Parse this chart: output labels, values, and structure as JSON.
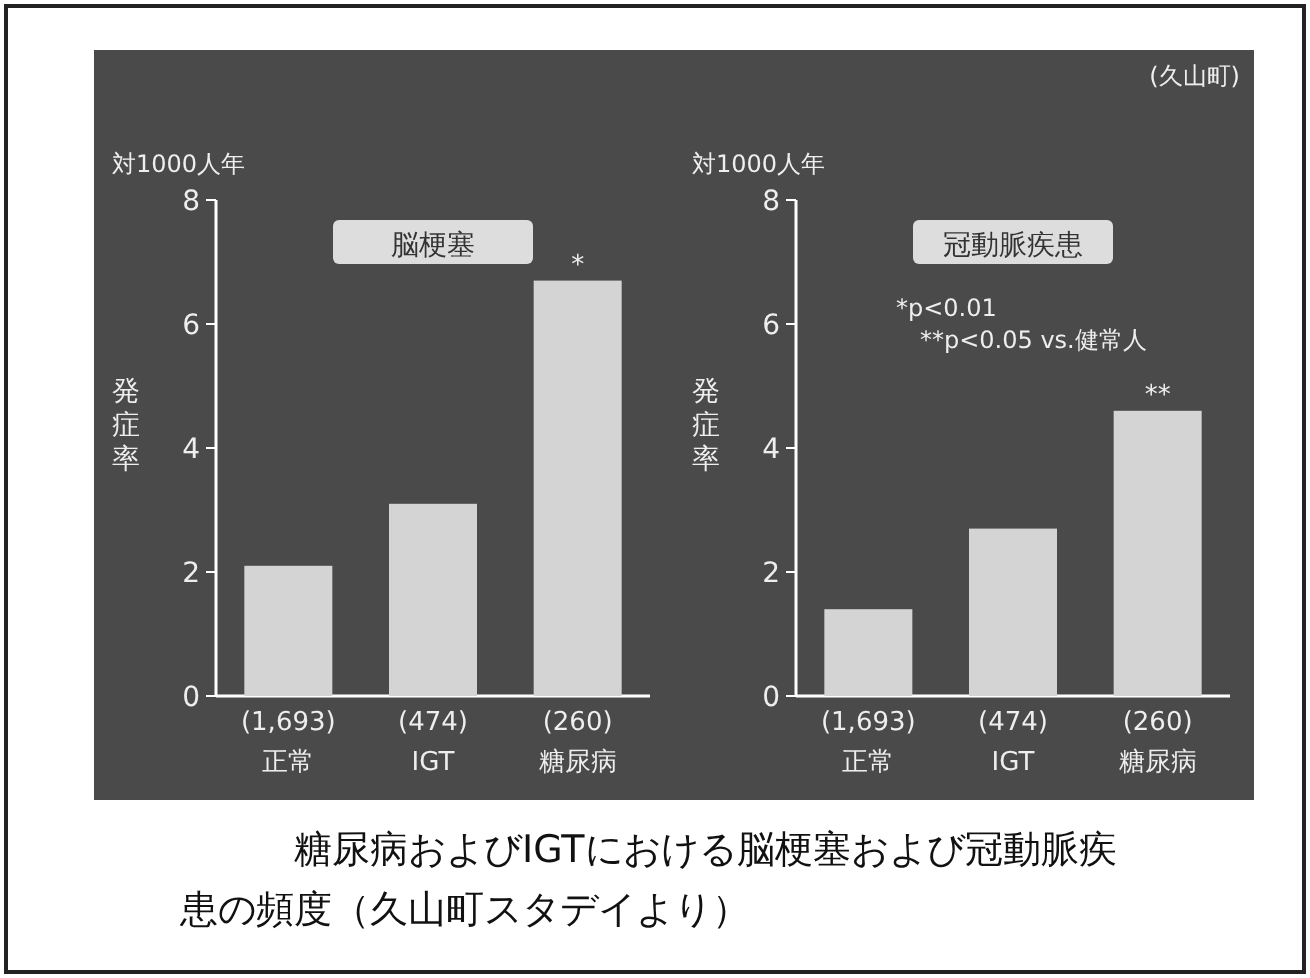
{
  "chart_data": [
    {
      "type": "bar",
      "title": "脳梗塞",
      "subtitle": "対1000人年",
      "ylabel": "発症率",
      "categories": [
        "(1,693)\n正常",
        "(474)\nIGT",
        "(260)\n糖尿病"
      ],
      "values": [
        2.1,
        3.1,
        6.7
      ],
      "color": "#d4d4d4",
      "ylim": [
        0,
        8
      ],
      "yticks": [
        0,
        2,
        4,
        6,
        8
      ],
      "annotations": [
        {
          "text": "*",
          "x": "(260)\n糖尿病",
          "y": 6.7
        },
        "糖尿病およびIGTにおける脳梗塞および冠動脈疾患の頻度（久山町スタデイより）"
      ]
    },
    {
      "type": "bar",
      "title": "冠動脈疾患",
      "subtitle": "対1000人年",
      "ylabel": "発症率",
      "categories": [
        "(1,693)\n正常",
        "(474)\nIGT",
        "(260)\n糖尿病"
      ],
      "values": [
        1.4,
        2.7,
        4.6
      ],
      "color": "#d4d4d4",
      "ylim": [
        0,
        8
      ],
      "yticks": [
        0,
        2,
        4,
        6,
        8
      ],
      "annotations": [
        {
          "text": "**",
          "x": "(260)\n糖尿病",
          "y": 4.6
        },
        "*p<0.01",
        "**p<0.05 vs.健常人",
        "(久山町)"
      ]
    }
  ]
}
